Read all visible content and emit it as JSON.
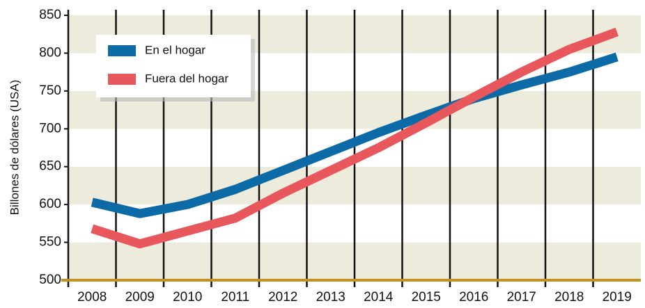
{
  "chart_data": {
    "type": "line",
    "y_label": "Billones de dólares (USA)",
    "categories": [
      "2008",
      "2009",
      "2010",
      "2011",
      "2012",
      "2013",
      "2014",
      "2015",
      "2016",
      "2017",
      "2018",
      "2019"
    ],
    "series": [
      {
        "name": "En el hogar",
        "color": "#0c6aa6",
        "values": [
          603,
          588,
          600,
          620,
          645,
          670,
          695,
          718,
          740,
          758,
          775,
          795
        ]
      },
      {
        "name": "Fuera del hogar",
        "color": "#e8575b",
        "values": [
          568,
          548,
          565,
          582,
          615,
          645,
          675,
          708,
          742,
          775,
          805,
          828
        ]
      }
    ],
    "ylim": [
      500,
      850
    ],
    "yticks": [
      500,
      550,
      600,
      650,
      700,
      750,
      800,
      850
    ],
    "grid": true,
    "legend": "upper left"
  }
}
